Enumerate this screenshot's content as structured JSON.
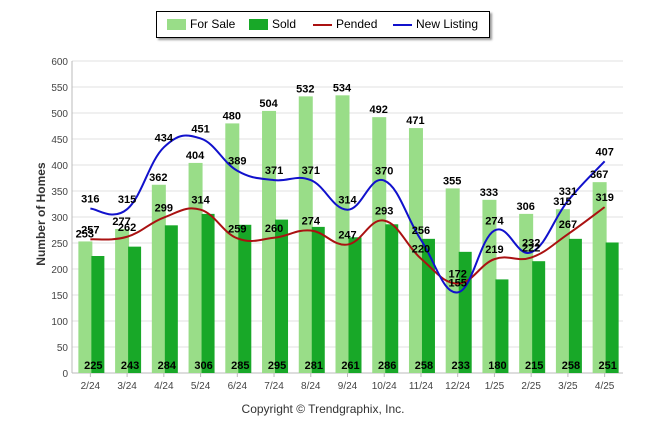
{
  "chart_data": {
    "type": "bar",
    "categories": [
      "2/24",
      "3/24",
      "4/24",
      "5/24",
      "6/24",
      "7/24",
      "8/24",
      "9/24",
      "10/24",
      "11/24",
      "12/24",
      "1/25",
      "2/25",
      "3/25",
      "4/25"
    ],
    "series": [
      {
        "name": "For Sale",
        "kind": "bar",
        "color": "#99dd88",
        "values": [
          253,
          277,
          362,
          404,
          480,
          504,
          532,
          534,
          492,
          471,
          355,
          333,
          306,
          315,
          367
        ]
      },
      {
        "name": "Sold",
        "kind": "bar",
        "color": "#18a828",
        "values": [
          225,
          243,
          284,
          306,
          285,
          295,
          281,
          261,
          286,
          258,
          233,
          180,
          215,
          258,
          251
        ]
      },
      {
        "name": "Pended",
        "kind": "line",
        "color": "#aa1111",
        "values": [
          257,
          262,
          299,
          314,
          259,
          260,
          274,
          247,
          293,
          220,
          172,
          219,
          222,
          267,
          319
        ]
      },
      {
        "name": "New Listing",
        "kind": "line",
        "color": "#1111cc",
        "values": [
          316,
          315,
          434,
          451,
          389,
          371,
          371,
          314,
          370,
          256,
          155,
          274,
          232,
          331,
          407
        ]
      }
    ],
    "ylabel": "Number of Homes",
    "ylim": [
      0,
      600
    ],
    "yticks": [
      0,
      50,
      100,
      150,
      200,
      250,
      300,
      350,
      400,
      450,
      500,
      550,
      600
    ],
    "grid": true,
    "legend_position": "top-center"
  },
  "copyright": "Copyright © Trendgraphix, Inc."
}
